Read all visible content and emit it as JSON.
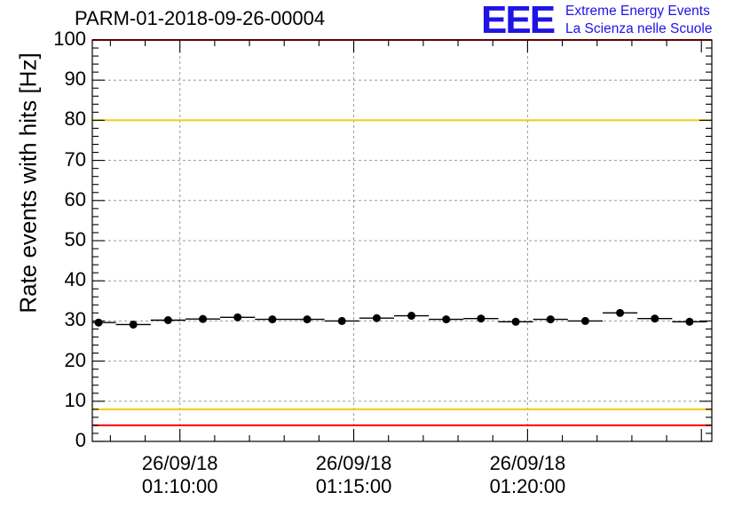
{
  "title": "PARM-01-2018-09-26-00004",
  "logo": {
    "letters": "EEE",
    "line1": "Extreme Energy Events",
    "line2": "La Scienza nelle Scuole"
  },
  "colors": {
    "red_line": "#ff0000",
    "yellow_line": "#f2cc0c",
    "logo_blue": "#1e14e6",
    "grid": "#9a9a9a"
  },
  "chart_data": {
    "type": "scatter",
    "title": "PARM-01-2018-09-26-00004",
    "xlabel": "",
    "ylabel": "Rate events with hits [Hz]",
    "ylim": [
      0,
      100
    ],
    "grid": true,
    "yticks": [
      0,
      10,
      20,
      30,
      40,
      50,
      60,
      70,
      80,
      90,
      100
    ],
    "xticks": [
      {
        "date": "26/09/18",
        "time": "01:10:00",
        "minute": 10.0
      },
      {
        "date": "26/09/18",
        "time": "01:15:00",
        "minute": 15.0
      },
      {
        "date": "26/09/18",
        "time": "01:20:00",
        "minute": 20.0
      }
    ],
    "xlim_minutes": [
      7.48,
      25.3
    ],
    "bin_width_minutes": 1.0,
    "reference_lines": [
      {
        "value": 100,
        "color": "red"
      },
      {
        "value": 80,
        "color": "yellow"
      },
      {
        "value": 8,
        "color": "yellow"
      },
      {
        "value": 4,
        "color": "red"
      }
    ],
    "series": [
      {
        "x_minutes": [
          7.66,
          8.66,
          9.66,
          10.66,
          11.66,
          12.66,
          13.66,
          14.66,
          15.66,
          16.66,
          17.66,
          18.66,
          19.66,
          20.66,
          21.66,
          22.66,
          23.66,
          24.66
        ],
        "values": [
          29.6,
          29.1,
          30.2,
          30.5,
          30.9,
          30.4,
          30.4,
          30.0,
          30.7,
          31.3,
          30.4,
          30.6,
          29.8,
          30.4,
          30.0,
          32.0,
          30.6,
          29.8
        ]
      }
    ]
  }
}
